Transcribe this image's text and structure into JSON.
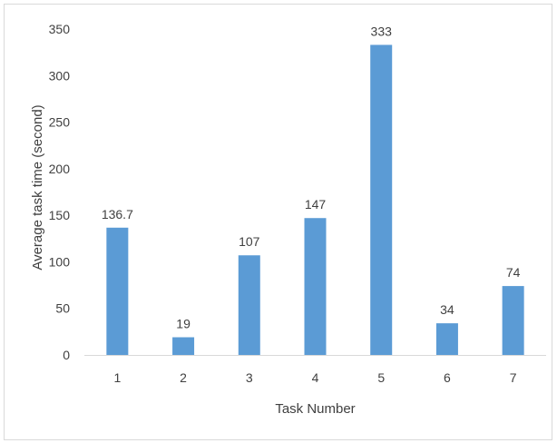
{
  "chart_data": {
    "type": "bar",
    "xlabel": "Task Number",
    "ylabel": "Average task time (second)",
    "categories": [
      "1",
      "2",
      "3",
      "4",
      "5",
      "6",
      "7"
    ],
    "values": [
      136.7,
      19,
      107,
      147,
      333,
      34,
      74
    ],
    "data_labels": [
      "136.7",
      "19",
      "107",
      "147",
      "333",
      "34",
      "74"
    ],
    "ylim": [
      0,
      350
    ],
    "yticks": [
      0,
      50,
      100,
      150,
      200,
      250,
      300,
      350
    ],
    "grid": false,
    "legend": "none",
    "bar_color": "#5b9bd5",
    "axis_color": "#d9d9d9"
  }
}
